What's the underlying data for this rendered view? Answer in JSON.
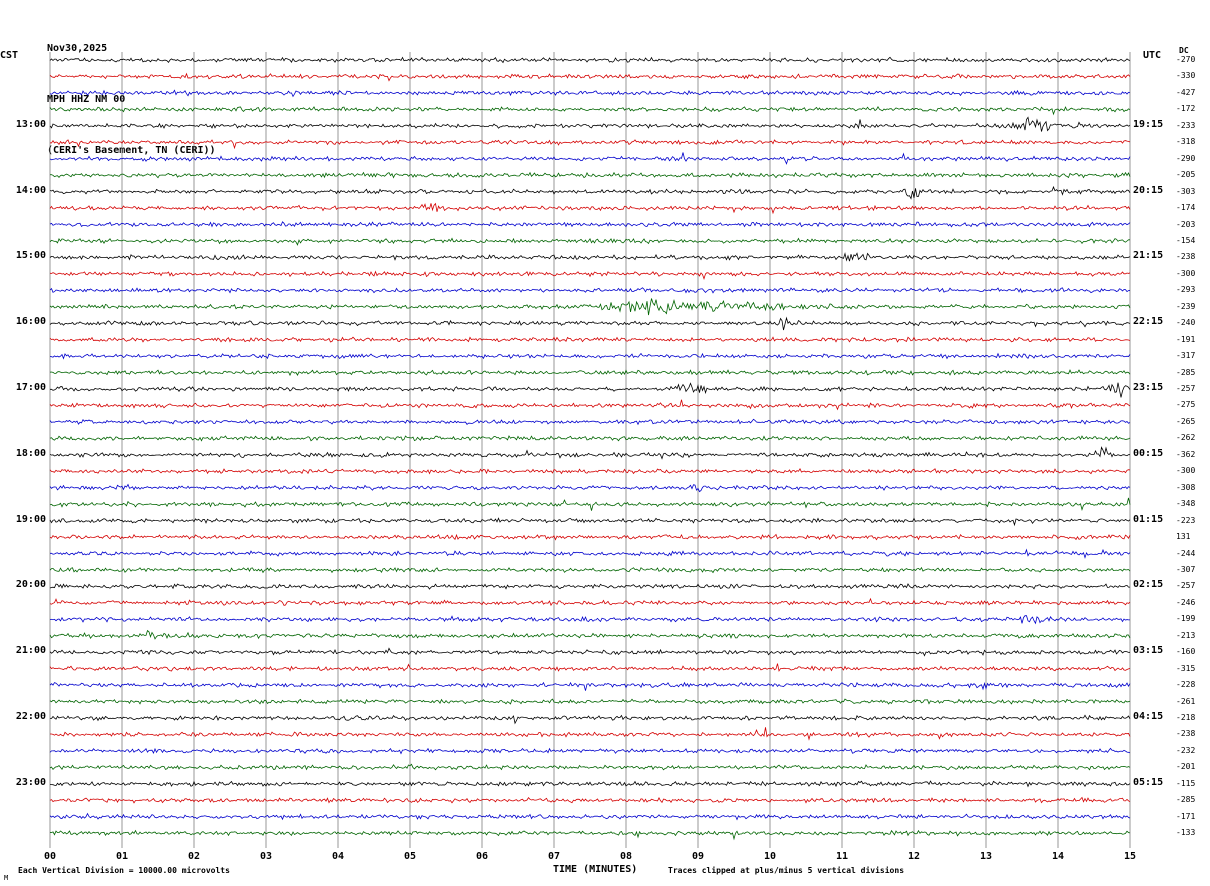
{
  "header": {
    "date": "Nov30,2025",
    "station": "MPH HHZ NM 00",
    "location": "(CERI's Basement, TN (CERI))",
    "left_tz": "CST",
    "right_tz": "UTC",
    "dc_label": "DC"
  },
  "x_axis": {
    "label": "TIME (MINUTES)",
    "ticks": [
      "00",
      "01",
      "02",
      "03",
      "04",
      "05",
      "06",
      "07",
      "08",
      "09",
      "10",
      "11",
      "12",
      "13",
      "14",
      "15"
    ]
  },
  "footer": {
    "logo": "M",
    "scale_note": "Each Vertical Division = 10000.00 microvolts",
    "clip_note": "Traces clipped at plus/minus 5 vertical divisions"
  },
  "chart_data": {
    "type": "line",
    "description": "12-hour helicorder seismogram, 48 trace rows of 15 minutes each, colors cycling black/red/blue/green, continuous background noise with occasional event bursts",
    "x_range_minutes": [
      0,
      15
    ],
    "rows_per_hour": 4,
    "grid_color": "#6b6b6b",
    "trace_colors_cycle": [
      "#000000",
      "#d40000",
      "#0000cc",
      "#006400"
    ],
    "traces": [
      {
        "left": "",
        "right": "",
        "dc": "-270",
        "events": []
      },
      {
        "left": "",
        "right": "",
        "dc": "-330",
        "events": []
      },
      {
        "left": "",
        "right": "",
        "dc": "-427",
        "events": []
      },
      {
        "left": "",
        "right": "",
        "dc": "-172",
        "events": []
      },
      {
        "left": "13:00",
        "right": "19:15",
        "dc": "-233",
        "events": [
          {
            "m": 13.7,
            "w": 0.25,
            "a": 3.5
          }
        ]
      },
      {
        "left": "",
        "right": "",
        "dc": "-318",
        "events": []
      },
      {
        "left": "",
        "right": "",
        "dc": "-290",
        "events": []
      },
      {
        "left": "",
        "right": "",
        "dc": "-205",
        "events": []
      },
      {
        "left": "14:00",
        "right": "20:15",
        "dc": "-303",
        "events": [
          {
            "m": 12.0,
            "w": 0.12,
            "a": 2.5
          },
          {
            "m": 14.0,
            "w": 0.1,
            "a": 1.5
          }
        ]
      },
      {
        "left": "",
        "right": "",
        "dc": "-174",
        "events": [
          {
            "m": 5.3,
            "w": 0.15,
            "a": 2.5
          }
        ]
      },
      {
        "left": "",
        "right": "",
        "dc": "-203",
        "events": []
      },
      {
        "left": "",
        "right": "",
        "dc": "-154",
        "events": [
          {
            "m": 3.4,
            "w": 0.1,
            "a": 1.8
          }
        ]
      },
      {
        "left": "15:00",
        "right": "21:15",
        "dc": "-238",
        "events": [
          {
            "m": 11.2,
            "w": 0.2,
            "a": 2.0
          }
        ]
      },
      {
        "left": "",
        "right": "",
        "dc": "-300",
        "events": []
      },
      {
        "left": "",
        "right": "",
        "dc": "-293",
        "events": []
      },
      {
        "left": "",
        "right": "",
        "dc": "-239",
        "events": [
          {
            "m": 9.0,
            "w": 1.1,
            "a": 2.2
          },
          {
            "m": 8.3,
            "w": 0.4,
            "a": 1.5
          }
        ]
      },
      {
        "left": "16:00",
        "right": "22:15",
        "dc": "-240",
        "events": [
          {
            "m": 10.2,
            "w": 0.15,
            "a": 2.8
          }
        ]
      },
      {
        "left": "",
        "right": "",
        "dc": "-191",
        "events": []
      },
      {
        "left": "",
        "right": "",
        "dc": "-317",
        "events": []
      },
      {
        "left": "",
        "right": "",
        "dc": "-285",
        "events": []
      },
      {
        "left": "17:00",
        "right": "23:15",
        "dc": "-257",
        "events": [
          {
            "m": 8.9,
            "w": 0.2,
            "a": 2.2
          },
          {
            "m": 14.85,
            "w": 0.15,
            "a": 3.0
          }
        ]
      },
      {
        "left": "",
        "right": "",
        "dc": "-275",
        "events": [
          {
            "m": 9.8,
            "w": 0.1,
            "a": 1.5
          }
        ]
      },
      {
        "left": "",
        "right": "",
        "dc": "-265",
        "events": []
      },
      {
        "left": "",
        "right": "",
        "dc": "-262",
        "events": []
      },
      {
        "left": "18:00",
        "right": "00:15",
        "dc": "-362",
        "events": [
          {
            "m": 14.6,
            "w": 0.12,
            "a": 2.5
          }
        ]
      },
      {
        "left": "",
        "right": "",
        "dc": "-300",
        "events": []
      },
      {
        "left": "",
        "right": "",
        "dc": "-308",
        "events": [
          {
            "m": 9.0,
            "w": 0.12,
            "a": 2.2
          }
        ]
      },
      {
        "left": "",
        "right": "",
        "dc": "-348",
        "events": []
      },
      {
        "left": "19:00",
        "right": "01:15",
        "dc": "-223",
        "events": []
      },
      {
        "left": "",
        "right": "",
        "dc": "131",
        "events": []
      },
      {
        "left": "",
        "right": "",
        "dc": "-244",
        "events": [
          {
            "m": 14.4,
            "w": 0.1,
            "a": 1.5
          }
        ]
      },
      {
        "left": "",
        "right": "",
        "dc": "-307",
        "events": []
      },
      {
        "left": "20:00",
        "right": "02:15",
        "dc": "-257",
        "events": []
      },
      {
        "left": "",
        "right": "",
        "dc": "-246",
        "events": []
      },
      {
        "left": "",
        "right": "",
        "dc": "-199",
        "events": [
          {
            "m": 13.6,
            "w": 0.15,
            "a": 2.0
          }
        ]
      },
      {
        "left": "",
        "right": "",
        "dc": "-213",
        "events": [
          {
            "m": 1.4,
            "w": 0.1,
            "a": 1.5
          }
        ]
      },
      {
        "left": "21:00",
        "right": "03:15",
        "dc": "-160",
        "events": []
      },
      {
        "left": "",
        "right": "",
        "dc": "-315",
        "events": []
      },
      {
        "left": "",
        "right": "",
        "dc": "-228",
        "events": [
          {
            "m": 12.9,
            "w": 0.1,
            "a": 1.5
          }
        ]
      },
      {
        "left": "",
        "right": "",
        "dc": "-261",
        "events": []
      },
      {
        "left": "22:00",
        "right": "04:15",
        "dc": "-218",
        "events": []
      },
      {
        "left": "",
        "right": "",
        "dc": "-238",
        "events": []
      },
      {
        "left": "",
        "right": "",
        "dc": "-232",
        "events": []
      },
      {
        "left": "",
        "right": "",
        "dc": "-201",
        "events": []
      },
      {
        "left": "23:00",
        "right": "05:15",
        "dc": "-115",
        "events": []
      },
      {
        "left": "",
        "right": "",
        "dc": "-285",
        "events": []
      },
      {
        "left": "",
        "right": "",
        "dc": "-171",
        "events": []
      },
      {
        "left": "",
        "right": "",
        "dc": "-133",
        "events": []
      }
    ]
  }
}
